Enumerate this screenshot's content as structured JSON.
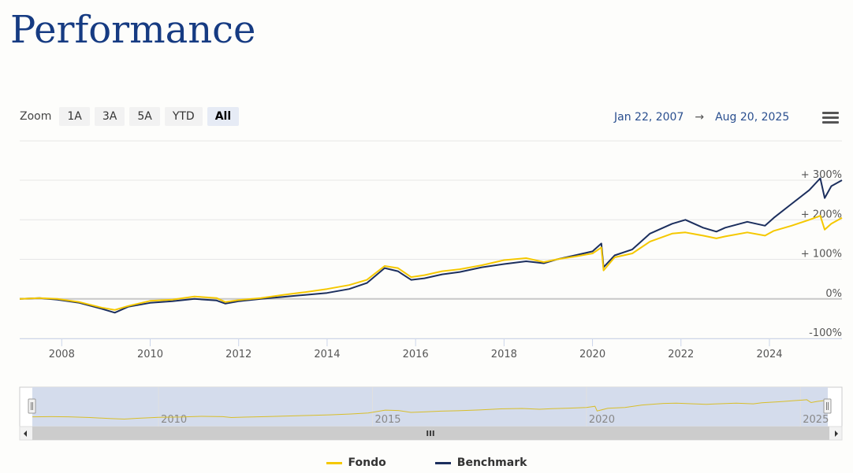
{
  "page": {
    "title": "Performance"
  },
  "toolbar": {
    "zoom_label": "Zoom",
    "zoom_buttons": [
      {
        "label": "1A",
        "active": false
      },
      {
        "label": "3A",
        "active": false
      },
      {
        "label": "5A",
        "active": false
      },
      {
        "label": "YTD",
        "active": false
      },
      {
        "label": "All",
        "active": true
      }
    ],
    "range_from": "Jan 22, 2007",
    "range_arrow": "→",
    "range_to": "Aug 20, 2025",
    "menu_icon": "hamburger-icon"
  },
  "chart_data": {
    "type": "line",
    "title": "",
    "xlabel": "",
    "ylabel": "",
    "xlim": [
      2007.05,
      2025.64
    ],
    "ylim": [
      -100,
      300
    ],
    "x_ticks": [
      "2008",
      "2010",
      "2012",
      "2014",
      "2016",
      "2018",
      "2020",
      "2022",
      "2024"
    ],
    "y_ticks": [
      "+ 300%",
      "+ 200%",
      "+ 100%",
      "0%",
      "-100%"
    ],
    "grid": true,
    "legend_position": "bottom-center",
    "series": [
      {
        "name": "Fondo",
        "color": "#f5c800",
        "points": [
          [
            2007.05,
            0
          ],
          [
            2007.5,
            2
          ],
          [
            2007.9,
            0
          ],
          [
            2008.4,
            -8
          ],
          [
            2008.9,
            -22
          ],
          [
            2009.2,
            -28
          ],
          [
            2009.5,
            -18
          ],
          [
            2010.0,
            -5
          ],
          [
            2010.5,
            -2
          ],
          [
            2011.0,
            6
          ],
          [
            2011.5,
            2
          ],
          [
            2011.7,
            -8
          ],
          [
            2012.0,
            -3
          ],
          [
            2012.5,
            2
          ],
          [
            2013.0,
            10
          ],
          [
            2013.5,
            17
          ],
          [
            2014.0,
            25
          ],
          [
            2014.5,
            35
          ],
          [
            2014.9,
            48
          ],
          [
            2015.3,
            83
          ],
          [
            2015.6,
            78
          ],
          [
            2015.9,
            55
          ],
          [
            2016.2,
            60
          ],
          [
            2016.6,
            70
          ],
          [
            2017.0,
            75
          ],
          [
            2017.5,
            85
          ],
          [
            2018.0,
            98
          ],
          [
            2018.5,
            103
          ],
          [
            2018.9,
            93
          ],
          [
            2019.2,
            100
          ],
          [
            2019.6,
            107
          ],
          [
            2020.0,
            115
          ],
          [
            2020.2,
            130
          ],
          [
            2020.25,
            72
          ],
          [
            2020.5,
            105
          ],
          [
            2020.9,
            115
          ],
          [
            2021.3,
            145
          ],
          [
            2021.8,
            165
          ],
          [
            2022.1,
            168
          ],
          [
            2022.5,
            160
          ],
          [
            2022.8,
            153
          ],
          [
            2023.0,
            158
          ],
          [
            2023.5,
            168
          ],
          [
            2023.9,
            160
          ],
          [
            2024.1,
            172
          ],
          [
            2024.5,
            185
          ],
          [
            2024.9,
            200
          ],
          [
            2025.15,
            210
          ],
          [
            2025.25,
            175
          ],
          [
            2025.4,
            190
          ],
          [
            2025.64,
            205
          ]
        ]
      },
      {
        "name": "Benchmark",
        "color": "#1c2f5e",
        "points": [
          [
            2007.05,
            0
          ],
          [
            2007.5,
            2
          ],
          [
            2007.9,
            -2
          ],
          [
            2008.4,
            -10
          ],
          [
            2008.9,
            -25
          ],
          [
            2009.2,
            -35
          ],
          [
            2009.5,
            -20
          ],
          [
            2010.0,
            -10
          ],
          [
            2010.5,
            -6
          ],
          [
            2011.0,
            0
          ],
          [
            2011.5,
            -4
          ],
          [
            2011.7,
            -12
          ],
          [
            2012.0,
            -6
          ],
          [
            2012.5,
            0
          ],
          [
            2013.0,
            5
          ],
          [
            2013.5,
            10
          ],
          [
            2014.0,
            15
          ],
          [
            2014.5,
            25
          ],
          [
            2014.9,
            40
          ],
          [
            2015.3,
            78
          ],
          [
            2015.6,
            70
          ],
          [
            2015.9,
            48
          ],
          [
            2016.2,
            52
          ],
          [
            2016.6,
            62
          ],
          [
            2017.0,
            68
          ],
          [
            2017.5,
            80
          ],
          [
            2018.0,
            88
          ],
          [
            2018.5,
            95
          ],
          [
            2018.9,
            90
          ],
          [
            2019.2,
            100
          ],
          [
            2019.6,
            110
          ],
          [
            2020.0,
            120
          ],
          [
            2020.2,
            140
          ],
          [
            2020.25,
            80
          ],
          [
            2020.5,
            110
          ],
          [
            2020.9,
            125
          ],
          [
            2021.3,
            165
          ],
          [
            2021.8,
            190
          ],
          [
            2022.1,
            200
          ],
          [
            2022.5,
            180
          ],
          [
            2022.8,
            170
          ],
          [
            2023.0,
            180
          ],
          [
            2023.5,
            195
          ],
          [
            2023.9,
            185
          ],
          [
            2024.1,
            205
          ],
          [
            2024.5,
            240
          ],
          [
            2024.9,
            275
          ],
          [
            2025.15,
            305
          ],
          [
            2025.25,
            255
          ],
          [
            2025.4,
            285
          ],
          [
            2025.64,
            300
          ]
        ]
      }
    ],
    "navigator": {
      "x_ticks": [
        "2010",
        "2015",
        "2020",
        "2025"
      ],
      "scrollbar_grip": "III"
    }
  }
}
